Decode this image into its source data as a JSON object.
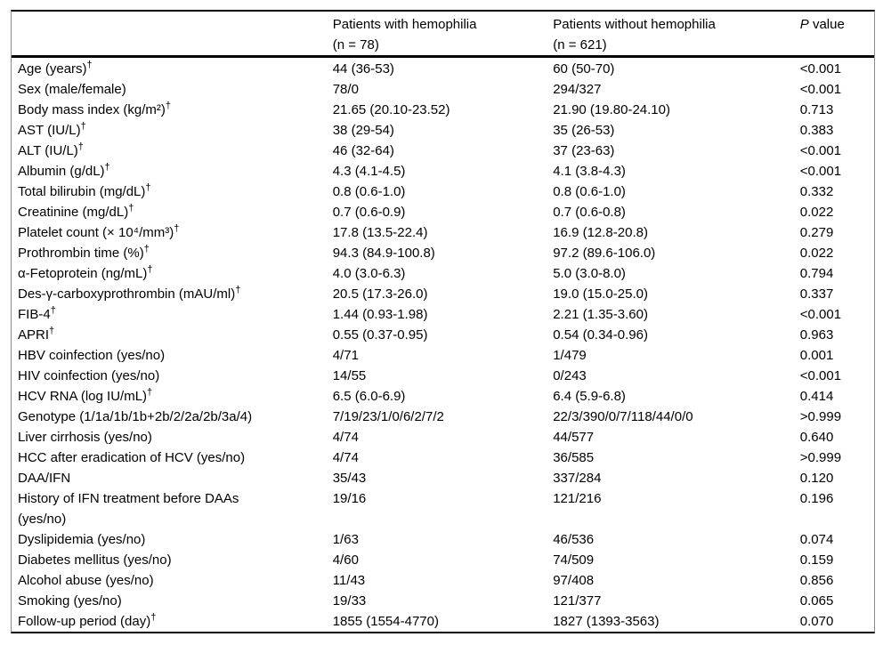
{
  "table": {
    "header": {
      "group_with_line1": "Patients with hemophilia",
      "group_with_line2": "(n = 78)",
      "group_without_line1": "Patients without hemophilia",
      "group_without_line2": "(n = 621)",
      "p_label_italic": "P",
      "p_label_rest": " value"
    },
    "rows": [
      {
        "label": "Age (years)†",
        "with_hemophilia": "44 (36-53)",
        "without_hemophilia": "60 (50-70)",
        "p_value": "<0.001"
      },
      {
        "label": "Sex (male/female)",
        "with_hemophilia": "78/0",
        "without_hemophilia": "294/327",
        "p_value": "<0.001"
      },
      {
        "label": "Body mass index (kg/m²)†",
        "with_hemophilia": "21.65 (20.10-23.52)",
        "without_hemophilia": "21.90 (19.80-24.10)",
        "p_value": "0.713"
      },
      {
        "label": "AST (IU/L)†",
        "with_hemophilia": "38 (29-54)",
        "without_hemophilia": "35 (26-53)",
        "p_value": "0.383"
      },
      {
        "label": "ALT (IU/L)†",
        "with_hemophilia": "46 (32-64)",
        "without_hemophilia": "37 (23-63)",
        "p_value": "<0.001"
      },
      {
        "label": "Albumin (g/dL)†",
        "with_hemophilia": "4.3 (4.1-4.5)",
        "without_hemophilia": "4.1 (3.8-4.3)",
        "p_value": "<0.001"
      },
      {
        "label": "Total bilirubin (mg/dL)†",
        "with_hemophilia": "0.8 (0.6-1.0)",
        "without_hemophilia": "0.8 (0.6-1.0)",
        "p_value": "0.332"
      },
      {
        "label": "Creatinine (mg/dL)†",
        "with_hemophilia": "0.7 (0.6-0.9)",
        "without_hemophilia": "0.7 (0.6-0.8)",
        "p_value": "0.022"
      },
      {
        "label": "Platelet count (× 10⁴/mm³)†",
        "with_hemophilia": "17.8 (13.5-22.4)",
        "without_hemophilia": "16.9 (12.8-20.8)",
        "p_value": "0.279"
      },
      {
        "label": "Prothrombin time (%)†",
        "with_hemophilia": "94.3 (84.9-100.8)",
        "without_hemophilia": "97.2 (89.6-106.0)",
        "p_value": "0.022"
      },
      {
        "label": "α-Fetoprotein (ng/mL)†",
        "with_hemophilia": "4.0 (3.0-6.3)",
        "without_hemophilia": "5.0 (3.0-8.0)",
        "p_value": "0.794"
      },
      {
        "label": "Des-γ-carboxyprothrombin (mAU/ml)†",
        "with_hemophilia": "20.5 (17.3-26.0)",
        "without_hemophilia": "19.0 (15.0-25.0)",
        "p_value": "0.337"
      },
      {
        "label": "FIB-4†",
        "with_hemophilia": "1.44 (0.93-1.98)",
        "without_hemophilia": "2.21 (1.35-3.60)",
        "p_value": "<0.001"
      },
      {
        "label": "APRI†",
        "with_hemophilia": "0.55 (0.37-0.95)",
        "without_hemophilia": "0.54 (0.34-0.96)",
        "p_value": "0.963"
      },
      {
        "label": "HBV coinfection (yes/no)",
        "with_hemophilia": "4/71",
        "without_hemophilia": "1/479",
        "p_value": "0.001"
      },
      {
        "label": "HIV coinfection (yes/no)",
        "with_hemophilia": "14/55",
        "without_hemophilia": "0/243",
        "p_value": "<0.001"
      },
      {
        "label": "HCV RNA (log IU/mL)†",
        "with_hemophilia": "6.5 (6.0-6.9)",
        "without_hemophilia": "6.4 (5.9-6.8)",
        "p_value": "0.414"
      },
      {
        "label": "Genotype (1/1a/1b/1b+2b/2/2a/2b/3a/4)",
        "with_hemophilia": "7/19/23/1/0/6/2/7/2",
        "without_hemophilia": "22/3/390/0/7/118/44/0/0",
        "p_value": ">0.999"
      },
      {
        "label": "Liver cirrhosis (yes/no)",
        "with_hemophilia": "4/74",
        "without_hemophilia": "44/577",
        "p_value": "0.640"
      },
      {
        "label": "HCC after eradication of HCV (yes/no)",
        "with_hemophilia": "4/74",
        "without_hemophilia": "36/585",
        "p_value": ">0.999"
      },
      {
        "label": "DAA/IFN",
        "with_hemophilia": "35/43",
        "without_hemophilia": "337/284",
        "p_value": "0.120"
      },
      {
        "label": "History of IFN treatment before DAAs\n(yes/no)",
        "with_hemophilia": "19/16",
        "without_hemophilia": "121/216",
        "p_value": "0.196"
      },
      {
        "label": "Dyslipidemia (yes/no)",
        "with_hemophilia": "1/63",
        "without_hemophilia": "46/536",
        "p_value": "0.074"
      },
      {
        "label": "Diabetes mellitus (yes/no)",
        "with_hemophilia": "4/60",
        "without_hemophilia": "74/509",
        "p_value": "0.159"
      },
      {
        "label": "Alcohol abuse (yes/no)",
        "with_hemophilia": "11/43",
        "without_hemophilia": "97/408",
        "p_value": "0.856"
      },
      {
        "label": "Smoking (yes/no)",
        "with_hemophilia": "19/33",
        "without_hemophilia": "121/377",
        "p_value": "0.065"
      },
      {
        "label": "Follow-up period (day)†",
        "with_hemophilia": "1855 (1554-4770)",
        "without_hemophilia": "1827 (1393-3563)",
        "p_value": "0.070"
      }
    ]
  }
}
